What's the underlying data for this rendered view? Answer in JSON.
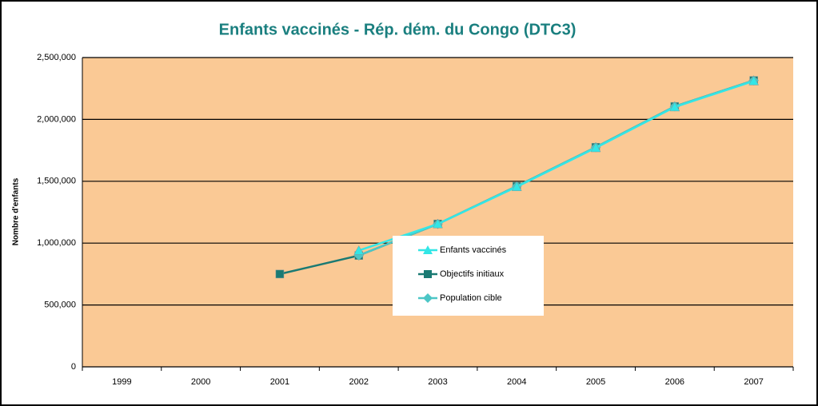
{
  "chart_data": {
    "type": "line",
    "title": "Enfants vaccinés - Rép. dém. du Congo (DTC3)",
    "ylabel": "Nombre d'enfants",
    "categories": [
      "1999",
      "2000",
      "2001",
      "2002",
      "2003",
      "2004",
      "2005",
      "2006",
      "2007"
    ],
    "series": [
      {
        "name": "Enfants vaccinés",
        "color": "#33e6e6",
        "marker": "triangle",
        "values": [
          null,
          null,
          null,
          940000,
          1155000,
          1455000,
          1770000,
          2100000,
          2310000
        ]
      },
      {
        "name": "Objectifs initiaux",
        "color": "#1a7a73",
        "marker": "square",
        "values": [
          null,
          null,
          750000,
          900000,
          1155000,
          1460000,
          1775000,
          2105000,
          2315000
        ]
      },
      {
        "name": "Population cible",
        "color": "#4cc6c6",
        "marker": "diamond",
        "values": [
          null,
          null,
          null,
          900000,
          1155000,
          1460000,
          1775000,
          2105000,
          2315000
        ]
      }
    ],
    "ylim": [
      0,
      2500000
    ],
    "yticks": [
      0,
      {
        "value": 500000,
        "label": "500,000"
      },
      {
        "value": 1000000,
        "label": "1,000,000"
      },
      {
        "value": 1500000,
        "label": "1,500,000"
      },
      {
        "value": 2000000,
        "label": "2,000,000"
      },
      {
        "value": 2500000,
        "label": "2,500,000"
      }
    ],
    "grid": true
  }
}
